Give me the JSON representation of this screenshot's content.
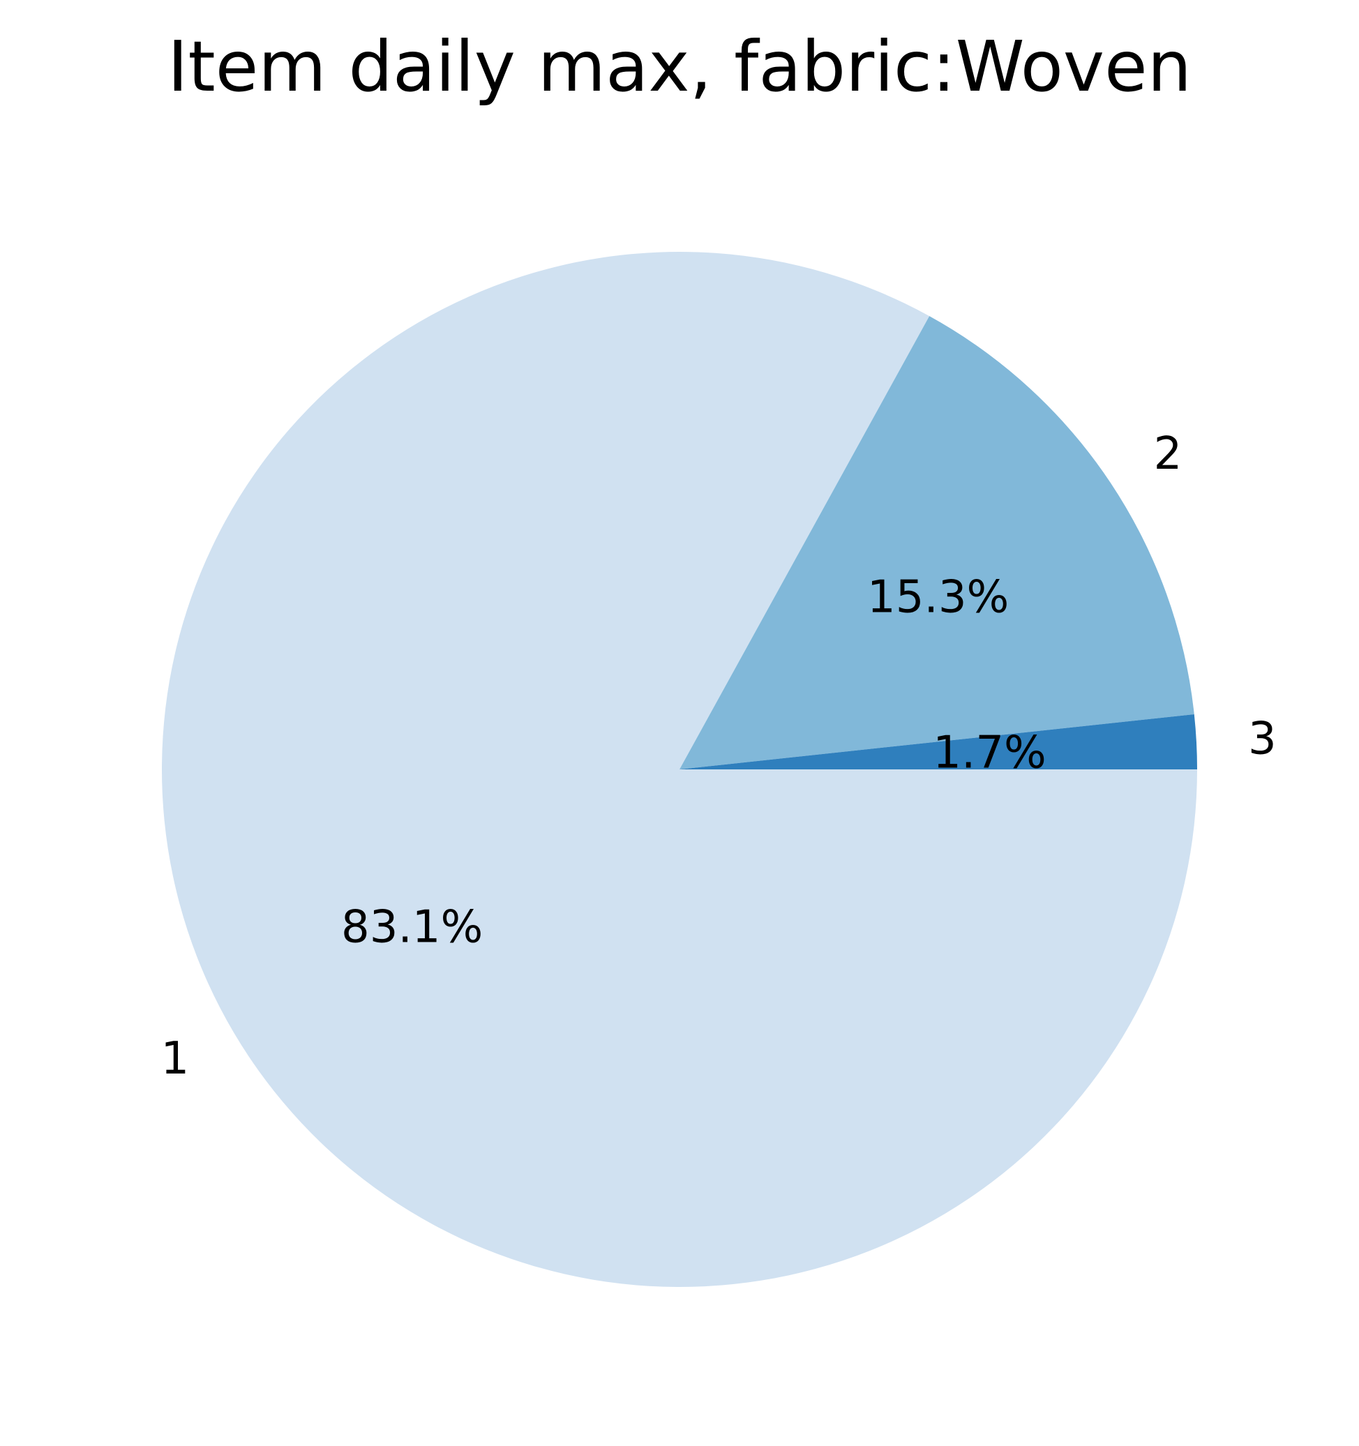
{
  "chart_data": {
    "type": "pie",
    "title": "Item daily max, fabric:Woven",
    "slices": [
      {
        "label": "1",
        "value": 83.1,
        "pct_label": "83.1%",
        "color": "#d0e1f1"
      },
      {
        "label": "2",
        "value": 15.3,
        "pct_label": "15.3%",
        "color": "#81b8d9"
      },
      {
        "label": "3",
        "value": 1.7,
        "pct_label": "1.7%",
        "color": "#2f7fbd"
      }
    ],
    "start_angle_deg": 0,
    "direction": "clockwise",
    "legend": "none"
  }
}
